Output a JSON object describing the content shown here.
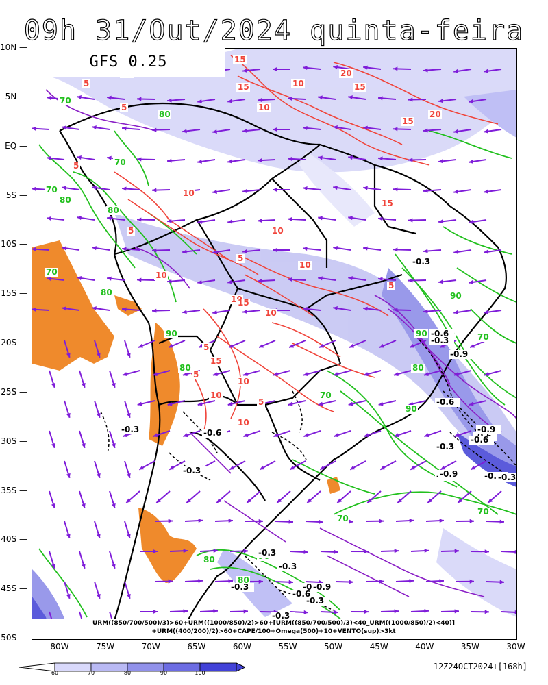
{
  "title": "09h 31/Out/2024 quinta-feira",
  "model": "GFS 0.25",
  "lat_labels": [
    "10N",
    "5N",
    "EQ",
    "5S",
    "10S",
    "15S",
    "20S",
    "25S",
    "30S",
    "35S",
    "40S",
    "45S",
    "50S"
  ],
  "lon_labels": [
    "80W",
    "75W",
    "70W",
    "65W",
    "60W",
    "55W",
    "50W",
    "45W",
    "40W",
    "35W",
    "30W"
  ],
  "legend_line1": "URM((850/700/500)/3)>60+URM((1000/850)/2)>60+[URM((850/700/500)/3)<40_URM((1000/850)/2)<40)]",
  "legend_line2": "+URM((400/200)/2)>60+CAPE/100+Omega(500)+10+VENTO(sup)>3kt",
  "colorbar_labels": [
    "60",
    "70",
    "80",
    "90",
    "100"
  ],
  "colorbar_colors": [
    "#d9d9fb",
    "#b9b9f4",
    "#9191ea",
    "#6c6ce3",
    "#4141d8"
  ],
  "run_info": "12Z24OCT2024+[168h]",
  "colors": {
    "rh_contour": "#22c01e",
    "cape_contour": "#f0443a",
    "omega_contour": "#000000",
    "wind_arrow": "#7f1dd9",
    "dry_fill": "#ef8a2c",
    "upper_rh": "#8a1fc6"
  },
  "contour_labels": {
    "cape": [
      "15",
      "5",
      "15",
      "10",
      "20",
      "15",
      "5",
      "10",
      "15",
      "20",
      "5",
      "10",
      "15",
      "5",
      "10",
      "5",
      "10",
      "10",
      "5",
      "10",
      "15",
      "10",
      "5",
      "15",
      "5",
      "10",
      "10",
      "5",
      "10"
    ],
    "rh": [
      "70",
      "80",
      "70",
      "80",
      "70",
      "80",
      "90",
      "80",
      "90",
      "80",
      "70",
      "80",
      "80",
      "70",
      "90",
      "80",
      "70",
      "90",
      "70",
      "80",
      "90",
      "80",
      "70"
    ],
    "omega": [
      "-0.3",
      "-0.6",
      "-0.3",
      "-0.6",
      "-0.3",
      "-0.9",
      "-0.3",
      "-0.3",
      "-0.6",
      "-0.9",
      "-0.3",
      "-0.9",
      "-0.6",
      "-0.3",
      "-0.3",
      "-0.3",
      "-0.6",
      "-0.6",
      "-0.9",
      "-0.3",
      "-0.3",
      "-0.3",
      "-0.6",
      "-0.9"
    ]
  }
}
